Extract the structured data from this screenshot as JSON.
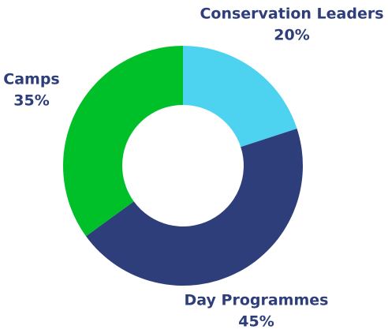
{
  "chart_data": {
    "type": "donut",
    "categories": [
      "Conservation Leaders",
      "Day Programmes",
      "Camps"
    ],
    "values": [
      20,
      45,
      35
    ],
    "value_labels": [
      "20%",
      "45%",
      "35%"
    ],
    "colors": [
      "#4dd2f0",
      "#2d3e7a",
      "#00c02a"
    ]
  }
}
